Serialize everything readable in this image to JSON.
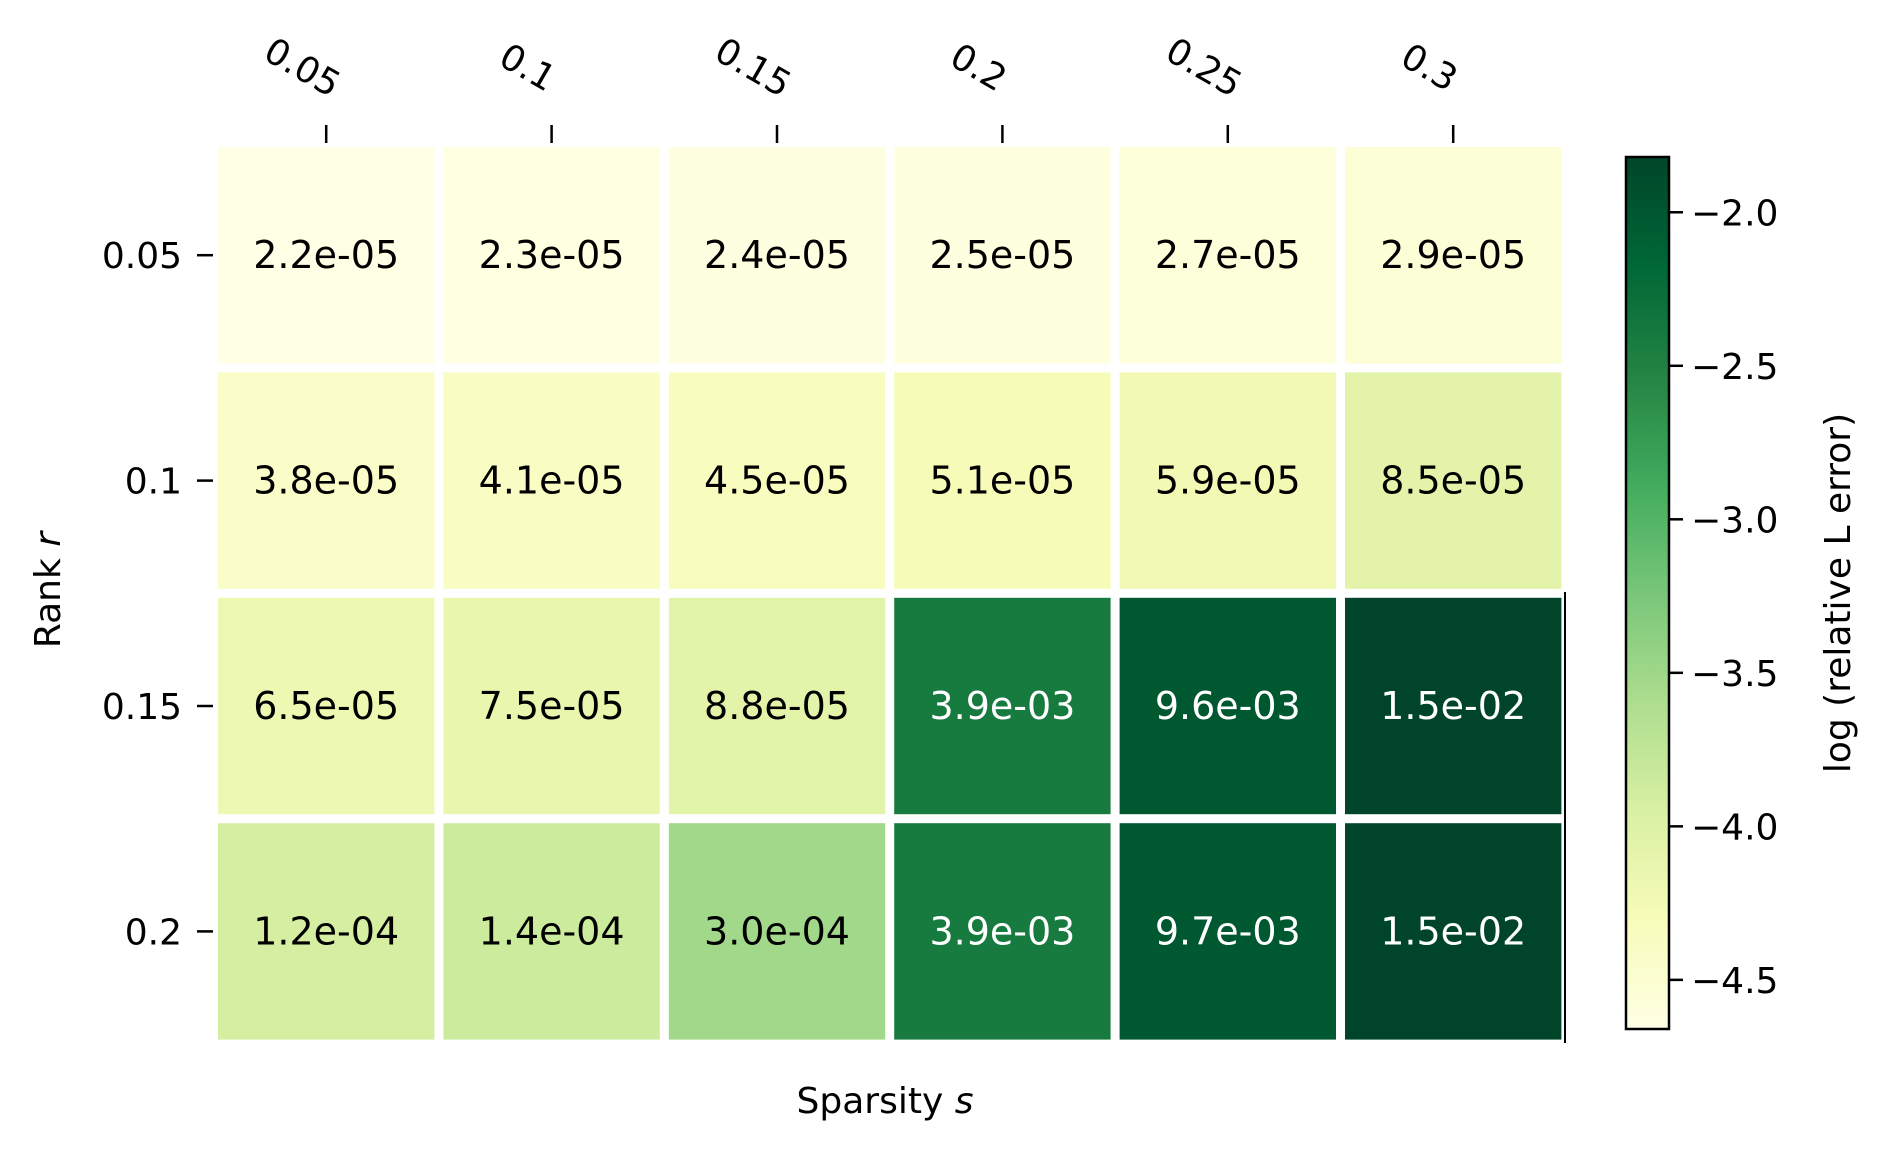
{
  "chart_data": {
    "type": "heatmap",
    "title": "",
    "xlabel": "Sparsity",
    "xlabel_symbol": "s",
    "ylabel": "Rank",
    "ylabel_symbol": "r",
    "x_categories": [
      "0.05",
      "0.1",
      "0.15",
      "0.2",
      "0.25",
      "0.3"
    ],
    "y_categories": [
      "0.05",
      "0.1",
      "0.15",
      "0.2"
    ],
    "x_axis_position": "top",
    "values": [
      [
        2.2e-05,
        2.3e-05,
        2.4e-05,
        2.5e-05,
        2.7e-05,
        2.9e-05
      ],
      [
        3.8e-05,
        4.1e-05,
        4.5e-05,
        5.1e-05,
        5.9e-05,
        8.5e-05
      ],
      [
        6.5e-05,
        7.5e-05,
        8.8e-05,
        0.0039,
        0.0096,
        0.015
      ],
      [
        0.00012,
        0.00014,
        0.0003,
        0.0039,
        0.0097,
        0.015
      ]
    ],
    "cell_labels": [
      [
        "2.2e-05",
        "2.3e-05",
        "2.4e-05",
        "2.5e-05",
        "2.7e-05",
        "2.9e-05"
      ],
      [
        "3.8e-05",
        "4.1e-05",
        "4.5e-05",
        "5.1e-05",
        "5.9e-05",
        "8.5e-05"
      ],
      [
        "6.5e-05",
        "7.5e-05",
        "8.8e-05",
        "3.9e-03",
        "9.6e-03",
        "1.5e-02"
      ],
      [
        "1.2e-04",
        "1.4e-04",
        "3.0e-04",
        "3.9e-03",
        "9.7e-03",
        "1.5e-02"
      ]
    ],
    "colorbar": {
      "label": "log (relative L error)",
      "min": -4.66,
      "max": -1.82,
      "ticks": [
        -2.0,
        -2.5,
        -3.0,
        -3.5,
        -4.0,
        -4.5
      ],
      "tick_labels": [
        "−2.0",
        "−2.5",
        "−3.0",
        "−3.5",
        "−4.0",
        "−4.5"
      ],
      "colormap": "YlGn",
      "colormap_stops": [
        "#ffffe5",
        "#f7fcb9",
        "#d9f0a3",
        "#addd8e",
        "#78c679",
        "#41ab5d",
        "#238443",
        "#006837",
        "#004529"
      ]
    },
    "grid": false,
    "legend": "colorbar-right"
  }
}
